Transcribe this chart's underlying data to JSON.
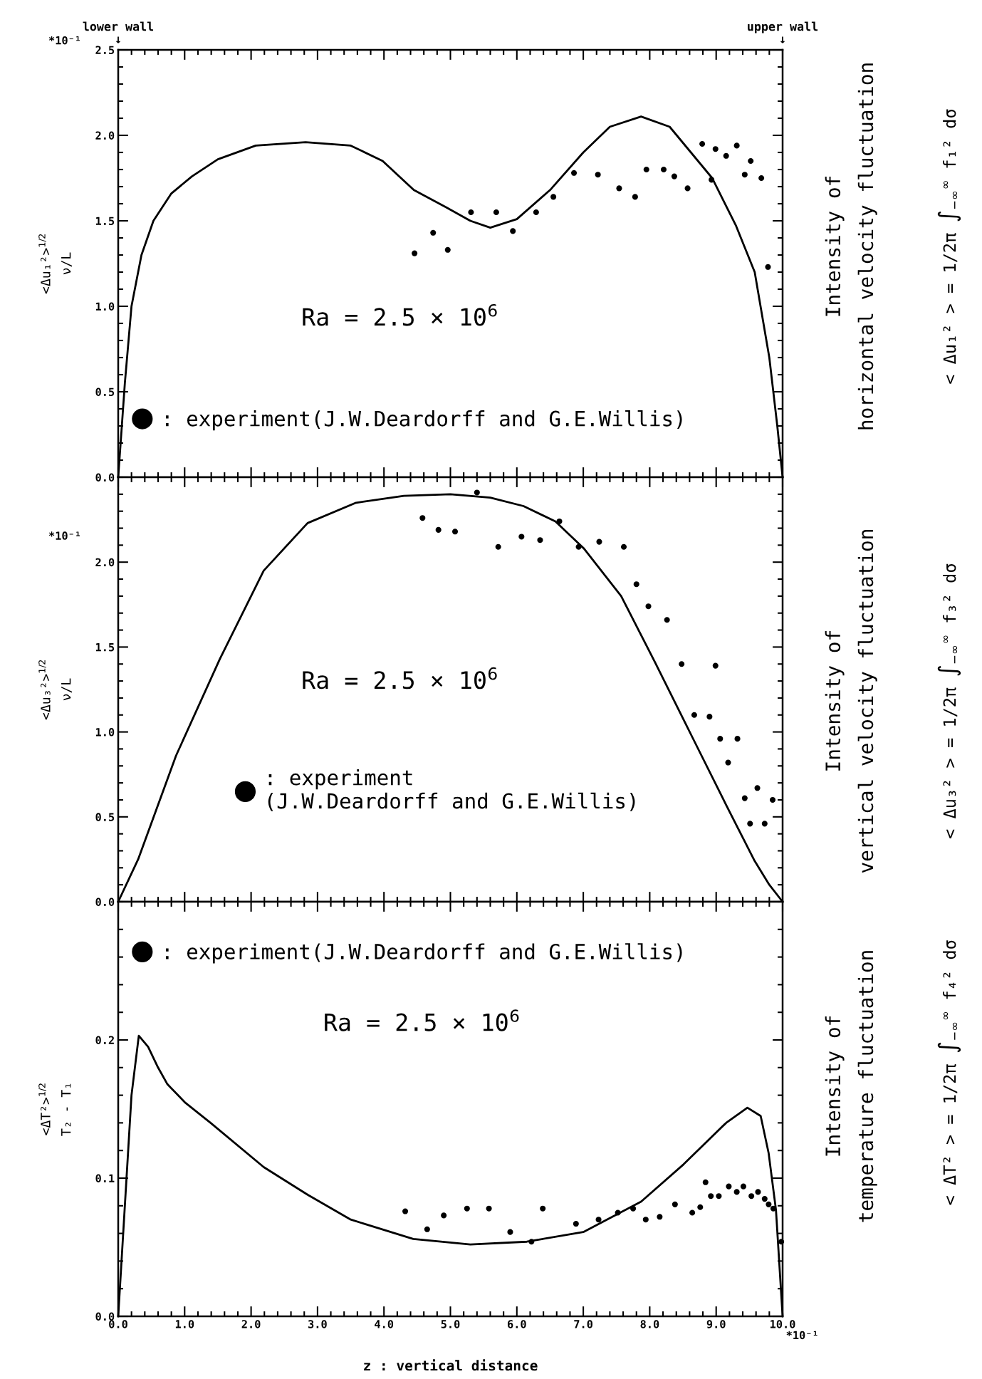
{
  "chart_data": [
    {
      "type": "line",
      "ylabel": "<Δu₁²>$^{1/2}$\nν/L",
      "xlim": [
        0,
        10
      ],
      "ylim": [
        0,
        2.5
      ],
      "xticks": [
        0,
        1,
        2,
        3,
        4,
        5,
        6,
        7,
        8,
        9,
        10
      ],
      "yticks": [
        {
          "value": 0,
          "label": "0.0"
        },
        {
          "value": 0.5,
          "label": "0.5"
        },
        {
          "value": 1,
          "label": "1.0"
        },
        {
          "value": 1.5,
          "label": "1.5"
        },
        {
          "value": 2,
          "label": "2.0"
        },
        {
          "value": 2.5,
          "label": "2.5"
        }
      ],
      "tick_labels": "y",
      "grid": false,
      "legend": "bottom left",
      "annotations": [
        "lower wall\n↓",
        "upper wall\n↓",
        "*10⁻¹",
        "Ra = 2.5 × 10$^{6}$",
        "Intensity of\nhorizontal velocity fluctuation",
        "< Δu₁² > = 1/2π ∫$_{−∞}$$^{∞}$ f₁² dσ"
      ],
      "series": [
        {
          "color": "#000000",
          "line_style": "solid",
          "marker": "none",
          "x": [
            0,
            0.1,
            0.2,
            0.35,
            0.53,
            0.8,
            1.11,
            1.5,
            2.07,
            2.82,
            3.5,
            3.98,
            4.45,
            4.93,
            5.3,
            5.6,
            6.0,
            6.5,
            7.0,
            7.4,
            7.87,
            8.3,
            8.94,
            9.3,
            9.58,
            9.8,
            9.92,
            10
          ],
          "values": [
            0,
            0.55,
            1.0,
            1.3,
            1.5,
            1.66,
            1.76,
            1.86,
            1.94,
            1.96,
            1.94,
            1.85,
            1.68,
            1.58,
            1.5,
            1.46,
            1.51,
            1.68,
            1.9,
            2.05,
            2.11,
            2.05,
            1.75,
            1.47,
            1.2,
            0.7,
            0.3,
            0
          ]
        },
        {
          "type": "scatter",
          "name": ": experiment(J.W.Deardorff and G.E.Willis)",
          "color": "#000000",
          "marker": "circle",
          "x": [
            4.46,
            4.74,
            4.96,
            5.31,
            5.69,
            5.94,
            6.29,
            6.55,
            6.86,
            7.22,
            7.54,
            7.78,
            7.95,
            8.21,
            8.37,
            8.57,
            8.79,
            8.93,
            8.99,
            9.15,
            9.31,
            9.43,
            9.52,
            9.68,
            9.78
          ],
          "values": [
            1.31,
            1.43,
            1.33,
            1.55,
            1.55,
            1.44,
            1.55,
            1.64,
            1.78,
            1.77,
            1.69,
            1.64,
            1.8,
            1.8,
            1.76,
            1.69,
            1.95,
            1.74,
            1.92,
            1.88,
            1.94,
            1.77,
            1.85,
            1.75,
            1.23
          ]
        }
      ]
    },
    {
      "type": "line",
      "ylabel": "<Δu₃²>$^{1/2}$\nν/L",
      "xlim": [
        0,
        10
      ],
      "ylim": [
        0,
        2.5
      ],
      "xticks": [
        0,
        1,
        2,
        3,
        4,
        5,
        6,
        7,
        8,
        9,
        10
      ],
      "yticks": [
        {
          "value": 0,
          "label": "0.0"
        },
        {
          "value": 0.5,
          "label": "0.5"
        },
        {
          "value": 1,
          "label": "1.0"
        },
        {
          "value": 1.5,
          "label": "1.5"
        },
        {
          "value": 2,
          "label": "2.0"
        }
      ],
      "tick_labels": "y",
      "grid": false,
      "legend": "bottom left",
      "annotations": [
        "*10⁻¹",
        "Ra = 2.5 × 10$^{6}$",
        "Intensity of\nvertical velocity fluctuation",
        "< Δu₃² > = 1/2π ∫$_{−∞}$$^{∞}$ f₃² dσ"
      ],
      "series": [
        {
          "color": "#000000",
          "line_style": "solid",
          "marker": "none",
          "x": [
            0,
            0.3,
            0.87,
            1.53,
            2.19,
            2.85,
            3.58,
            4.3,
            5.0,
            5.6,
            6.1,
            6.58,
            7.01,
            7.57,
            8.08,
            8.64,
            9.15,
            9.58,
            9.8,
            10
          ],
          "values": [
            0,
            0.25,
            0.86,
            1.43,
            1.95,
            2.23,
            2.35,
            2.39,
            2.4,
            2.38,
            2.33,
            2.24,
            2.08,
            1.8,
            1.41,
            0.97,
            0.57,
            0.24,
            0.1,
            0
          ]
        },
        {
          "type": "scatter",
          "name": ": experiment\n(J.W.Deardorff and G.E.Willis)",
          "color": "#000000",
          "marker": "circle",
          "x": [
            4.58,
            4.82,
            5.07,
            5.4,
            5.72,
            6.07,
            6.35,
            6.64,
            6.93,
            7.24,
            7.61,
            7.8,
            7.98,
            8.26,
            8.48,
            8.99,
            8.67,
            8.9,
            9.06,
            9.32,
            9.18,
            9.43,
            9.62,
            9.85,
            9.51,
            9.73
          ],
          "values": [
            2.26,
            2.19,
            2.18,
            2.41,
            2.09,
            2.15,
            2.13,
            2.24,
            2.09,
            2.12,
            2.09,
            1.87,
            1.74,
            1.66,
            1.4,
            1.39,
            1.1,
            1.09,
            0.96,
            0.96,
            0.82,
            0.61,
            0.67,
            0.6,
            0.46,
            0.46
          ]
        }
      ]
    },
    {
      "type": "line",
      "ylabel": "<ΔT²>$^{1/2}$\nT₂ - T₁",
      "xlabel": "z : vertical distance",
      "xlim": [
        0,
        10
      ],
      "ylim": [
        0,
        0.3
      ],
      "xticks": [
        {
          "value": 0,
          "label": "0.0"
        },
        {
          "value": 1,
          "label": "1.0"
        },
        {
          "value": 2,
          "label": "2.0"
        },
        {
          "value": 3,
          "label": "3.0"
        },
        {
          "value": 4,
          "label": "4.0"
        },
        {
          "value": 5,
          "label": "5.0"
        },
        {
          "value": 6,
          "label": "6.0"
        },
        {
          "value": 7,
          "label": "7.0"
        },
        {
          "value": 8,
          "label": "8.0"
        },
        {
          "value": 9,
          "label": "9.0"
        },
        {
          "value": 10,
          "label": "10.0"
        }
      ],
      "yticks": [
        {
          "value": 0,
          "label": "0.0"
        },
        {
          "value": 0.1,
          "label": "0.1"
        },
        {
          "value": 0.2,
          "label": "0.2"
        }
      ],
      "grid": false,
      "legend": "top left",
      "annotations": [
        "*10⁻¹",
        "Ra = 2.5 × 10$^{6}$",
        "Intensity of\ntemperature fluctuation",
        "< ΔT² > = 1/2π ∫$_{−∞}$$^{∞}$ f₄² dσ"
      ],
      "series": [
        {
          "color": "#000000",
          "line_style": "solid",
          "marker": "none",
          "x": [
            0,
            0.1,
            0.2,
            0.31,
            0.45,
            0.6,
            0.74,
            1.0,
            1.39,
            2.19,
            2.85,
            3.5,
            4.44,
            5.3,
            6.15,
            7.0,
            7.87,
            8.51,
            9.15,
            9.47,
            9.67,
            9.79,
            9.9,
            10
          ],
          "values": [
            0,
            0.08,
            0.16,
            0.203,
            0.195,
            0.18,
            0.168,
            0.155,
            0.14,
            0.108,
            0.088,
            0.07,
            0.056,
            0.052,
            0.054,
            0.061,
            0.083,
            0.11,
            0.14,
            0.151,
            0.145,
            0.118,
            0.077,
            0
          ]
        },
        {
          "type": "scatter",
          "name": ": experiment(J.W.Deardorff and G.E.Willis)",
          "color": "#000000",
          "marker": "circle",
          "x": [
            4.32,
            4.65,
            4.9,
            5.25,
            5.58,
            5.9,
            6.22,
            6.39,
            6.89,
            7.23,
            7.52,
            7.75,
            7.94,
            8.15,
            8.38,
            8.64,
            8.76,
            8.84,
            8.92,
            9.04,
            9.19,
            9.31,
            9.41,
            9.53,
            9.63,
            9.73,
            9.79,
            9.86,
            9.98
          ],
          "values": [
            0.076,
            0.063,
            0.073,
            0.078,
            0.078,
            0.061,
            0.054,
            0.078,
            0.067,
            0.07,
            0.075,
            0.078,
            0.07,
            0.072,
            0.081,
            0.075,
            0.079,
            0.097,
            0.087,
            0.087,
            0.094,
            0.09,
            0.094,
            0.087,
            0.09,
            0.085,
            0.081,
            0.078,
            0.054
          ]
        }
      ]
    }
  ]
}
